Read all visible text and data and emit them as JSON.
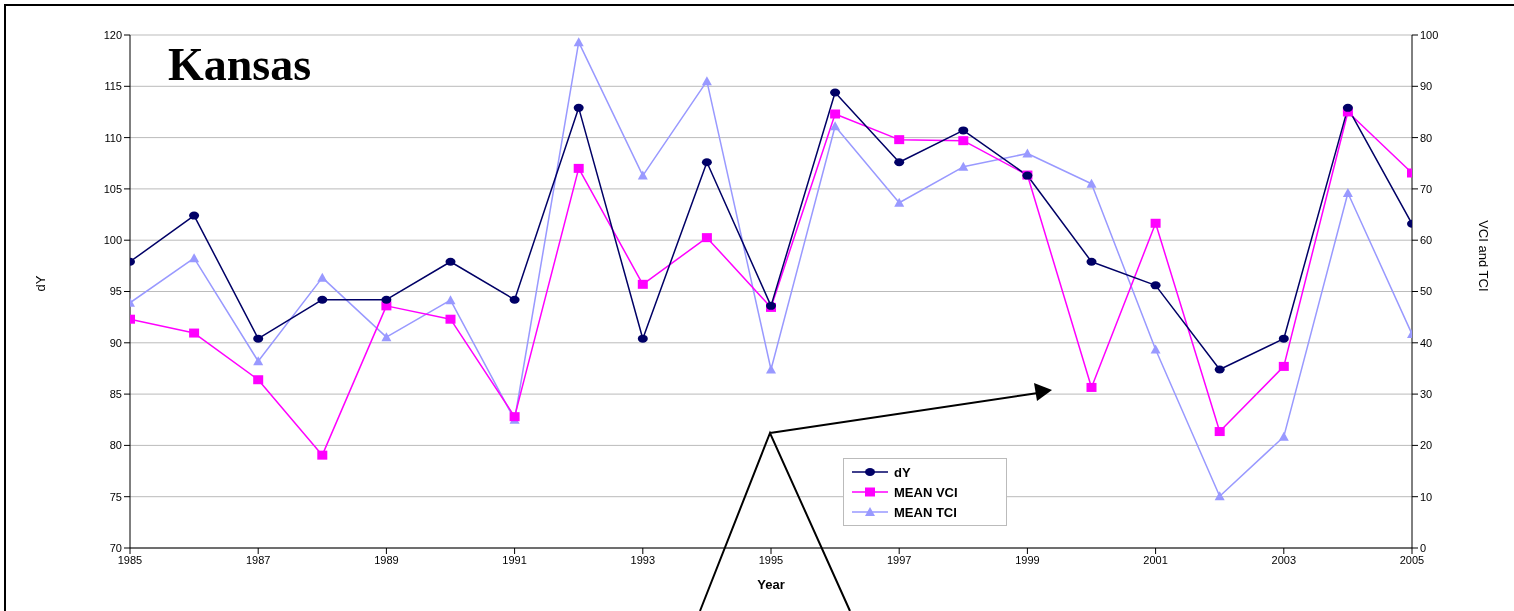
{
  "chart_data": {
    "type": "line",
    "title": "Kansas",
    "xlabel": "Year",
    "ylabel": "dY",
    "y2label": "VCI and TCI",
    "x": [
      1985,
      1986,
      1987,
      1988,
      1989,
      1990,
      1991,
      1992,
      1993,
      1994,
      1995,
      1996,
      1997,
      1998,
      1999,
      2000,
      2001,
      2002,
      2003,
      2004,
      2005
    ],
    "xlim": [
      1985,
      2005
    ],
    "xticks": [
      1985,
      1987,
      1989,
      1991,
      1993,
      1995,
      1997,
      1999,
      2001,
      2003,
      2005
    ],
    "ylim": [
      70,
      120
    ],
    "yticks": [
      70,
      75,
      80,
      85,
      90,
      95,
      100,
      105,
      110,
      115,
      120
    ],
    "y2lim": [
      0,
      100
    ],
    "y2ticks": [
      0,
      10,
      20,
      30,
      40,
      50,
      60,
      70,
      80,
      90,
      100
    ],
    "grid": "y",
    "legend": "bottom",
    "series": [
      {
        "name": "dY",
        "color": "#000066",
        "marker": "circle",
        "values": [
          97.9,
          102.4,
          90.4,
          94.2,
          94.2,
          97.9,
          94.2,
          112.9,
          90.4,
          107.6,
          93.6,
          114.4,
          107.6,
          110.7,
          106.3,
          97.9,
          95.6,
          87.4,
          90.4,
          112.9,
          101.6
        ]
      },
      {
        "name": "MEAN VCI",
        "color": "#ff00ff",
        "marker": "square",
        "axis": "y2",
        "values": [
          44.6,
          41.9,
          32.8,
          18.1,
          47.2,
          44.6,
          25.6,
          74,
          51.4,
          60.5,
          46.9,
          84.6,
          79.6,
          79.4,
          72.7,
          31.3,
          63.3,
          22.7,
          35.4,
          85,
          73.1
        ]
      },
      {
        "name": "MEAN TCI",
        "color": "#9999ff",
        "marker": "triangle",
        "axis": "y2",
        "values": [
          47.8,
          56.5,
          36.4,
          52.7,
          41.1,
          48.3,
          25,
          98.6,
          72.6,
          91,
          34.8,
          82.2,
          67.3,
          74.3,
          76.9,
          71,
          38.7,
          10.1,
          21.7,
          69.2,
          41.7
        ]
      }
    ]
  }
}
